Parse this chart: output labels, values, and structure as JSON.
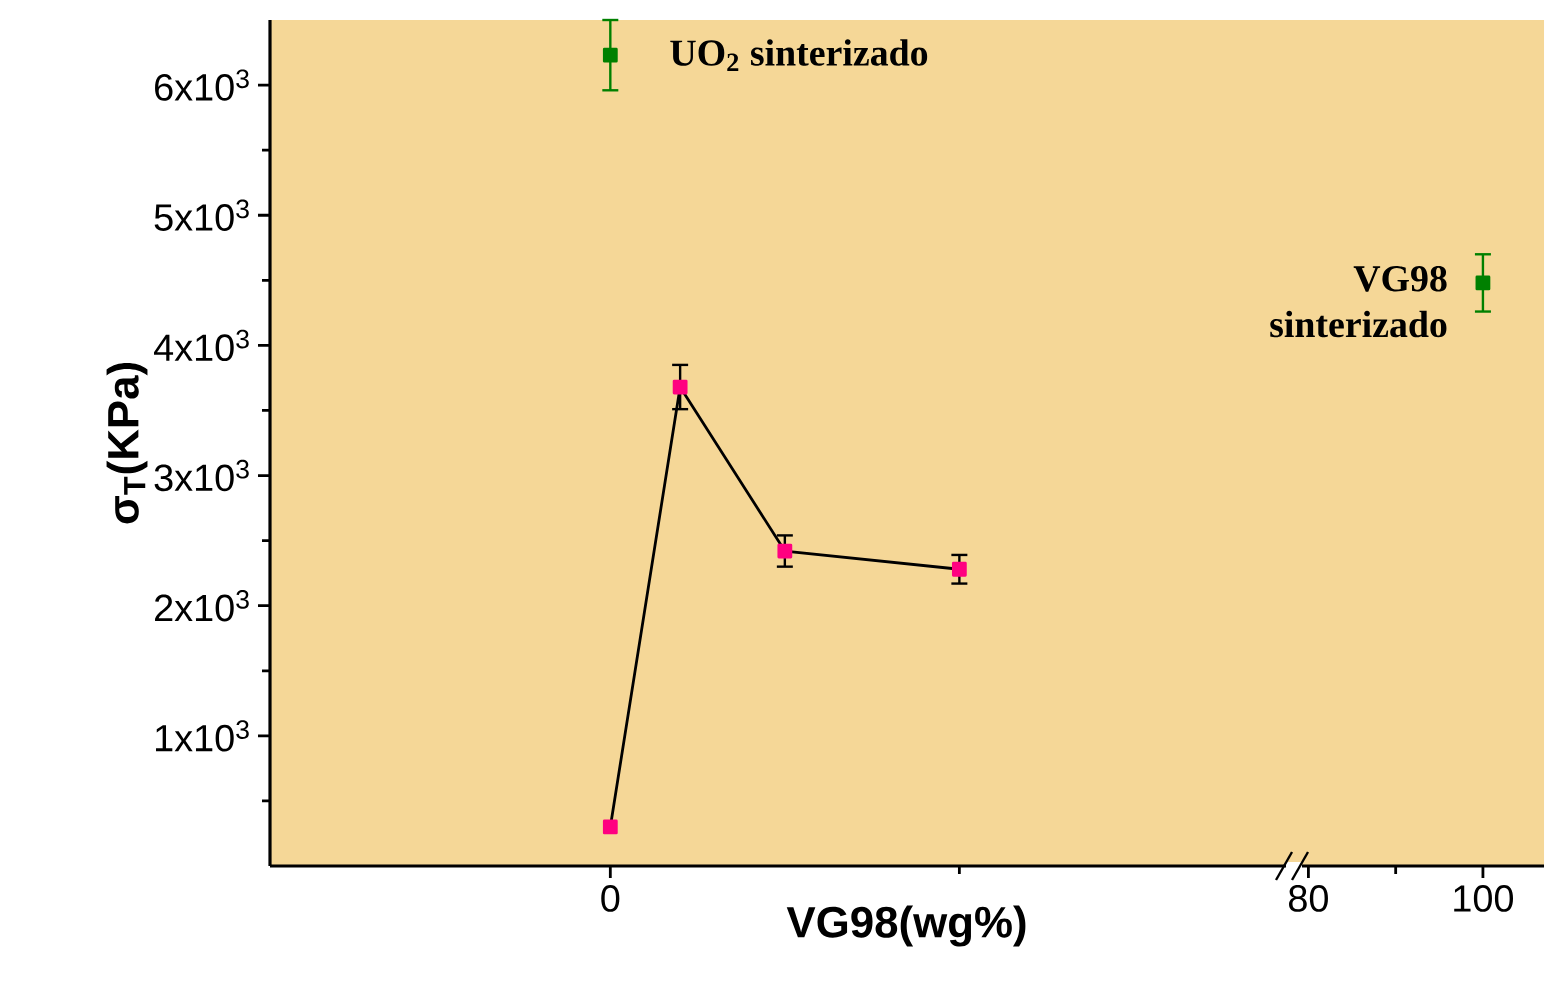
{
  "chart_data": {
    "type": "line",
    "xlabel": "VG98(wg%)",
    "ylabel": "σ$_{T}$(KPa)",
    "xlim": [
      -39,
      107
    ],
    "ylim": [
      0,
      6500
    ],
    "xticks": [
      0,
      {
        "value": 40,
        "label": null
      },
      80,
      {
        "value": 90,
        "label": null
      },
      100
    ],
    "yticks": [
      {
        "value": 500,
        "label": null
      },
      {
        "value": 1000,
        "label": "1x10$^{3}$"
      },
      {
        "value": 1500,
        "label": null
      },
      {
        "value": 2000,
        "label": "2x10$^{3}$"
      },
      {
        "value": 2500,
        "label": null
      },
      {
        "value": 3000,
        "label": "3x10$^{3}$"
      },
      {
        "value": 3500,
        "label": null
      },
      {
        "value": 4000,
        "label": "4x10$^{3}$"
      },
      {
        "value": 4500,
        "label": null
      },
      {
        "value": 5000,
        "label": "5x10$^{3}$"
      },
      {
        "value": 5500,
        "label": null
      },
      {
        "value": 6000,
        "label": "6x10$^{3}$"
      }
    ],
    "marker": "square",
    "series": [
      {
        "color": "#ff0080",
        "x": [
          0,
          8,
          20,
          40
        ],
        "values": [
          300,
          3680,
          2420,
          2280
        ],
        "errors": [
          null,
          170,
          120,
          110
        ]
      },
      {
        "type": "scatter",
        "color": "#008000",
        "x": [
          0,
          100
        ],
        "values": [
          6230,
          4480
        ],
        "errors": [
          270,
          220
        ]
      }
    ],
    "annotations": [
      {
        "text": "UO$_{2}$ sinterizado",
        "x": 0,
        "y": 6230
      },
      {
        "text": "VG98 sinterizado",
        "x": 100,
        "y": 4480
      }
    ]
  }
}
